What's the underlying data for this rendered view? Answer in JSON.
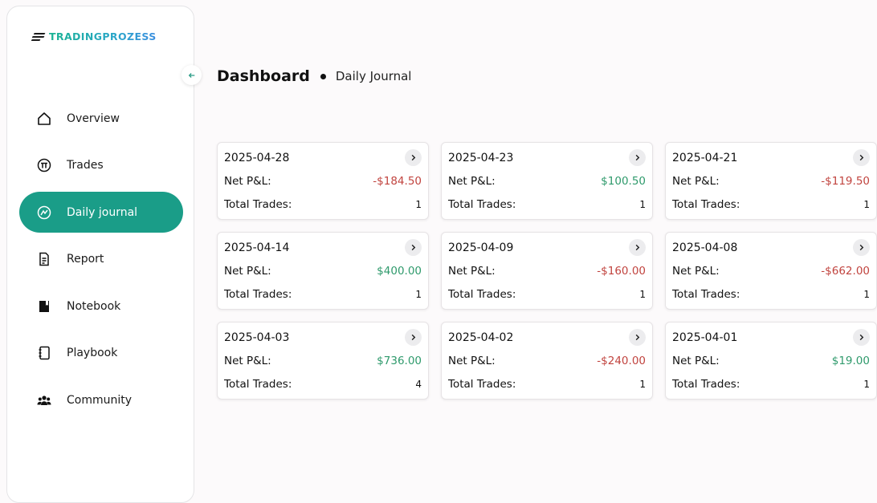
{
  "brand": {
    "name": "TRADINGPROZESS"
  },
  "nav": [
    {
      "label": "Overview",
      "icon": "home-icon",
      "active": false
    },
    {
      "label": "Trades",
      "icon": "trades-icon",
      "active": false
    },
    {
      "label": "Daily journal",
      "icon": "journal-icon",
      "active": true
    },
    {
      "label": "Report",
      "icon": "report-icon",
      "active": false
    },
    {
      "label": "Notebook",
      "icon": "notebook-icon",
      "active": false
    },
    {
      "label": "Playbook",
      "icon": "playbook-icon",
      "active": false
    },
    {
      "label": "Community",
      "icon": "community-icon",
      "active": false
    }
  ],
  "header": {
    "title": "Dashboard",
    "subtitle": "Daily Journal"
  },
  "labels": {
    "pnl": "Net P&L:",
    "trades": "Total Trades:"
  },
  "colors": {
    "accent": "#1a9d88",
    "positive": "#2f9a6c",
    "negative": "#c1443f"
  },
  "cards": [
    {
      "date": "2025-04-28",
      "pnl": "-$184.50",
      "trades": "1",
      "sign": "neg"
    },
    {
      "date": "2025-04-23",
      "pnl": "$100.50",
      "trades": "1",
      "sign": "pos"
    },
    {
      "date": "2025-04-21",
      "pnl": "-$119.50",
      "trades": "1",
      "sign": "neg"
    },
    {
      "date": "2025-04-14",
      "pnl": "$400.00",
      "trades": "1",
      "sign": "pos"
    },
    {
      "date": "2025-04-09",
      "pnl": "-$160.00",
      "trades": "1",
      "sign": "neg"
    },
    {
      "date": "2025-04-08",
      "pnl": "-$662.00",
      "trades": "1",
      "sign": "neg"
    },
    {
      "date": "2025-04-03",
      "pnl": "$736.00",
      "trades": "4",
      "sign": "pos"
    },
    {
      "date": "2025-04-02",
      "pnl": "-$240.00",
      "trades": "1",
      "sign": "neg"
    },
    {
      "date": "2025-04-01",
      "pnl": "$19.00",
      "trades": "1",
      "sign": "pos"
    }
  ]
}
